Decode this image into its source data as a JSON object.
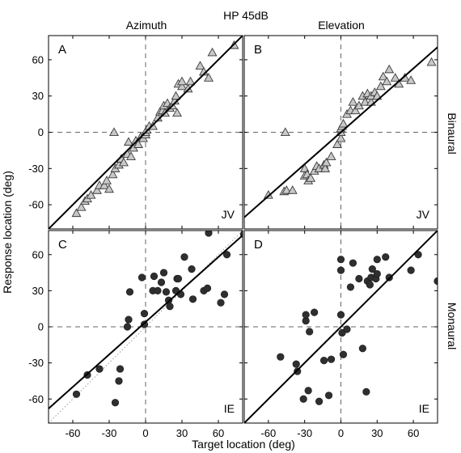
{
  "chart_data": {
    "type": "scatter",
    "title": "HP 45dB",
    "column_titles": [
      "Azimuth",
      "Elevation"
    ],
    "row_titles": [
      "Binaural",
      "Monaural"
    ],
    "xlabel": "Target location (deg)",
    "ylabel": "Response location (deg)",
    "xlim": [
      -80,
      80
    ],
    "ylim": [
      -80,
      80
    ],
    "xticks": [
      -60,
      -30,
      0,
      30,
      60
    ],
    "yticks": [
      -60,
      -30,
      0,
      30,
      60
    ],
    "tick_labels": [
      "-60",
      "-30",
      "0",
      "30",
      "60"
    ],
    "grid": false,
    "reference_lines": "dashed lines at x=0 and y=0",
    "panels": [
      {
        "letter": "A",
        "subject": "JV",
        "marker": "triangle",
        "column": "Azimuth",
        "row": "Binaural",
        "fit": {
          "slope": 1.0,
          "intercept": 0
        },
        "points": [
          [
            -57,
            -67
          ],
          [
            -53,
            -62
          ],
          [
            -50,
            -57
          ],
          [
            -48,
            -55
          ],
          [
            -45,
            -52
          ],
          [
            -40,
            -48
          ],
          [
            -38,
            -44
          ],
          [
            -34,
            -44
          ],
          [
            -32,
            -40
          ],
          [
            -30,
            -47
          ],
          [
            -27,
            -35
          ],
          [
            -25,
            -30
          ],
          [
            -22,
            -27
          ],
          [
            -20,
            -22
          ],
          [
            -18,
            -25
          ],
          [
            -15,
            -18
          ],
          [
            -14,
            -8
          ],
          [
            -12,
            -20
          ],
          [
            -10,
            -13
          ],
          [
            -8,
            -7
          ],
          [
            -6,
            -10
          ],
          [
            -4,
            -4
          ],
          [
            -2,
            -5
          ],
          [
            0,
            -2
          ],
          [
            0,
            0
          ],
          [
            1,
            2
          ],
          [
            3,
            5
          ],
          [
            6,
            5
          ],
          [
            10,
            12
          ],
          [
            12,
            17
          ],
          [
            14,
            18
          ],
          [
            15,
            22
          ],
          [
            16,
            16
          ],
          [
            18,
            24
          ],
          [
            20,
            20
          ],
          [
            22,
            22
          ],
          [
            24,
            26
          ],
          [
            25,
            30
          ],
          [
            26,
            16
          ],
          [
            27,
            40
          ],
          [
            30,
            38
          ],
          [
            30,
            42
          ],
          [
            35,
            36
          ],
          [
            37,
            42
          ],
          [
            45,
            55
          ],
          [
            48,
            50
          ],
          [
            52,
            45
          ],
          [
            55,
            66
          ],
          [
            73,
            72
          ],
          [
            -26,
            0
          ]
        ]
      },
      {
        "letter": "B",
        "subject": "JV",
        "marker": "triangle",
        "column": "Elevation",
        "row": "Binaural",
        "fit": {
          "slope": 0.88,
          "intercept": 0
        },
        "points": [
          [
            -60,
            -52
          ],
          [
            -47,
            -49
          ],
          [
            -45,
            -48
          ],
          [
            -40,
            -48
          ],
          [
            -30,
            -36
          ],
          [
            -30,
            -30
          ],
          [
            -28,
            -35
          ],
          [
            -27,
            -40
          ],
          [
            -25,
            -38
          ],
          [
            -22,
            -32
          ],
          [
            -20,
            -28
          ],
          [
            -18,
            -30
          ],
          [
            -14,
            -27
          ],
          [
            -13,
            -30
          ],
          [
            -12,
            -25
          ],
          [
            -8,
            -20
          ],
          [
            -3,
            -10
          ],
          [
            0,
            -5
          ],
          [
            0,
            0
          ],
          [
            0,
            3
          ],
          [
            1,
            5
          ],
          [
            2,
            7
          ],
          [
            5,
            15
          ],
          [
            8,
            18
          ],
          [
            10,
            25
          ],
          [
            12,
            18
          ],
          [
            15,
            22
          ],
          [
            18,
            30
          ],
          [
            20,
            25
          ],
          [
            22,
            32
          ],
          [
            25,
            25
          ],
          [
            25,
            30
          ],
          [
            28,
            33
          ],
          [
            30,
            30
          ],
          [
            33,
            38
          ],
          [
            35,
            46
          ],
          [
            38,
            42
          ],
          [
            40,
            52
          ],
          [
            45,
            45
          ],
          [
            48,
            40
          ],
          [
            53,
            45
          ],
          [
            58,
            43
          ],
          [
            75,
            58
          ],
          [
            -46,
            0
          ]
        ]
      },
      {
        "letter": "C",
        "subject": "IE",
        "marker": "circle",
        "column": "Azimuth",
        "row": "Monaural",
        "fit": {
          "slope": 0.9,
          "intercept": 4
        },
        "points": [
          [
            -57,
            -56
          ],
          [
            -48,
            -40
          ],
          [
            -38,
            -35
          ],
          [
            -25,
            -63
          ],
          [
            -22,
            -45
          ],
          [
            -21,
            -35
          ],
          [
            -15,
            0
          ],
          [
            -14,
            6
          ],
          [
            -13,
            29
          ],
          [
            -3,
            41
          ],
          [
            -1,
            2
          ],
          [
            -1,
            11
          ],
          [
            6,
            30
          ],
          [
            7,
            42
          ],
          [
            10,
            30
          ],
          [
            13,
            37
          ],
          [
            15,
            45
          ],
          [
            17,
            29
          ],
          [
            19,
            22
          ],
          [
            20,
            17
          ],
          [
            25,
            30
          ],
          [
            26,
            40
          ],
          [
            27,
            40
          ],
          [
            29,
            27
          ],
          [
            32,
            58
          ],
          [
            38,
            48
          ],
          [
            39,
            23
          ],
          [
            48,
            30
          ],
          [
            51,
            32
          ],
          [
            52,
            78
          ],
          [
            62,
            20
          ],
          [
            65,
            27
          ],
          [
            67,
            60
          ],
          [
            81,
            77
          ]
        ]
      },
      {
        "letter": "D",
        "subject": "IE",
        "marker": "circle",
        "column": "Elevation",
        "row": "Monaural",
        "fit": {
          "slope": 1.0,
          "intercept": 0
        },
        "points": [
          [
            -50,
            -25
          ],
          [
            -37,
            -31
          ],
          [
            -36,
            -37
          ],
          [
            -31,
            -60
          ],
          [
            -29,
            5
          ],
          [
            -29,
            10
          ],
          [
            -27,
            -53
          ],
          [
            -26,
            -4
          ],
          [
            -22,
            12
          ],
          [
            -18,
            -62
          ],
          [
            -14,
            -28
          ],
          [
            -10,
            -57
          ],
          [
            -8,
            -27
          ],
          [
            0,
            10
          ],
          [
            0,
            47
          ],
          [
            0,
            56
          ],
          [
            1,
            -5
          ],
          [
            2,
            -23
          ],
          [
            5,
            -2
          ],
          [
            8,
            33
          ],
          [
            10,
            53
          ],
          [
            15,
            40
          ],
          [
            18,
            -18
          ],
          [
            21,
            -54
          ],
          [
            22,
            38
          ],
          [
            24,
            35
          ],
          [
            25,
            41
          ],
          [
            26,
            48
          ],
          [
            29,
            40
          ],
          [
            30,
            44
          ],
          [
            30,
            56
          ],
          [
            37,
            58
          ],
          [
            40,
            41
          ],
          [
            58,
            47
          ],
          [
            64,
            60
          ],
          [
            80,
            38
          ]
        ]
      }
    ]
  }
}
